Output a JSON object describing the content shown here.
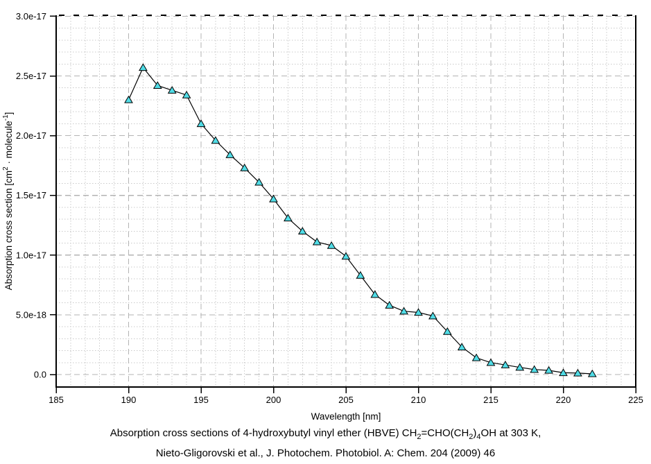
{
  "chart_data": {
    "type": "line",
    "title": "",
    "xlabel": "Wavelength [nm]",
    "ylabel": "Absorption cross section [cm2 · molecule-1]",
    "ylabel_parts": [
      {
        "t": "Absorption cross section [cm"
      },
      {
        "t": "2",
        "sup": true
      },
      {
        "t": " · molecule"
      },
      {
        "t": "-1",
        "sup": true
      },
      {
        "t": "]"
      }
    ],
    "x": [
      190,
      191,
      192,
      193,
      194,
      195,
      196,
      197,
      198,
      199,
      200,
      201,
      202,
      203,
      204,
      205,
      206,
      207,
      208,
      209,
      210,
      211,
      212,
      213,
      214,
      215,
      216,
      217,
      218,
      219,
      220,
      221,
      222
    ],
    "y": [
      2.3e-17,
      2.57e-17,
      2.42e-17,
      2.38e-17,
      2.34e-17,
      2.1e-17,
      1.96e-17,
      1.84e-17,
      1.73e-17,
      1.61e-17,
      1.47e-17,
      1.31e-17,
      1.2e-17,
      1.11e-17,
      1.08e-17,
      9.9e-18,
      8.3e-18,
      6.7e-18,
      5.8e-18,
      5.3e-18,
      5.2e-18,
      4.9e-18,
      3.6e-18,
      2.3e-18,
      1.4e-18,
      1e-18,
      8e-19,
      6e-19,
      4.2e-19,
      3.5e-19,
      1.5e-19,
      1.2e-19,
      6e-20
    ],
    "xlim": [
      185,
      225
    ],
    "ylim": [
      -1e-18,
      3e-17
    ],
    "x_major_ticks": [
      185,
      190,
      195,
      200,
      205,
      210,
      215,
      220,
      225
    ],
    "x_minor_step_nm": 1,
    "y_tick_labels": [
      "3.0e-17",
      "2.5e-17",
      "2.0e-17",
      "1.5e-17",
      "1.0e-17",
      "5.0e-18",
      "0.0"
    ],
    "y_tick_values": [
      3e-17,
      2.5e-17,
      2e-17,
      1.5e-17,
      1e-17,
      5e-18,
      0
    ],
    "y_minor_step": 1e-18,
    "grid": {
      "major": "dashed",
      "minor": "dotted",
      "enabled": true
    },
    "legend": "none",
    "style": {
      "line_color": "#000000",
      "marker_shape": "triangle-up",
      "marker_fill": "#50DCE6",
      "marker_edge": "#000000",
      "grid_major_color": "#b3b3b3",
      "grid_minor_color": "#c9c9c9",
      "axis_color": "#000000",
      "background": "#ffffff"
    }
  },
  "caption": {
    "line1_plain": "Absorption cross sections of 4-hydroxybutyl vinyl ether (HBVE) CH2=CHO(CH2)4OH at 303 K,",
    "line1_parts": [
      {
        "t": "Absorption cross sections of 4-hydroxybutyl vinyl ether (HBVE) CH"
      },
      {
        "t": "2",
        "sub": true
      },
      {
        "t": "=CHO(CH"
      },
      {
        "t": "2",
        "sub": true
      },
      {
        "t": ")"
      },
      {
        "t": "4",
        "sub": true
      },
      {
        "t": "OH at 303 K,"
      }
    ],
    "line2": "Nieto-Gligorovski et al., J. Photochem. Photobiol. A: Chem. 204 (2009) 46"
  }
}
